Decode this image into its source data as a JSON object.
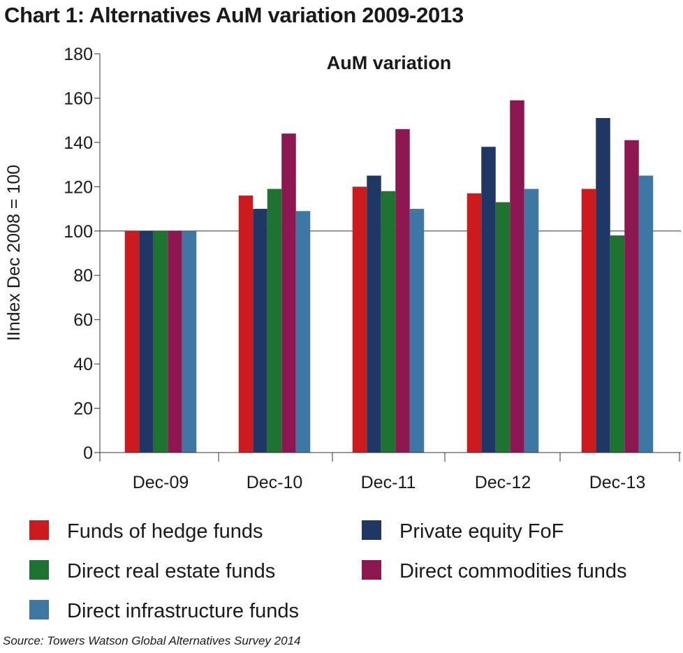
{
  "page": {
    "title": "Chart 1: Alternatives AuM variation 2009-2013",
    "source": "Source: Towers Watson Global Alternatives Survey 2014"
  },
  "chart_data": {
    "type": "bar",
    "title": "AuM variation",
    "xlabel": "",
    "ylabel": "IIndex Dec 2008 = 100",
    "ylim": [
      0,
      180
    ],
    "yticks": [
      0,
      20,
      40,
      60,
      80,
      100,
      120,
      140,
      160,
      180
    ],
    "reference_line": 100,
    "grid": false,
    "legend_position": "bottom",
    "categories": [
      "Dec-09",
      "Dec-10",
      "Dec-11",
      "Dec-12",
      "Dec-13"
    ],
    "series": [
      {
        "name": "Funds of hedge funds",
        "color": "#cc1a1f",
        "values": [
          100,
          116,
          120,
          117,
          119
        ]
      },
      {
        "name": "Private equity FoF",
        "color": "#1e3765",
        "values": [
          100,
          110,
          125,
          138,
          151
        ]
      },
      {
        "name": "Direct real estate funds",
        "color": "#1e7331",
        "values": [
          100,
          119,
          118,
          113,
          98
        ]
      },
      {
        "name": "Direct commodities funds",
        "color": "#8c1751",
        "values": [
          100,
          144,
          146,
          159,
          141
        ]
      },
      {
        "name": "Direct infrastructure funds",
        "color": "#3e77a4",
        "values": [
          100,
          109,
          110,
          119,
          125
        ]
      }
    ]
  }
}
